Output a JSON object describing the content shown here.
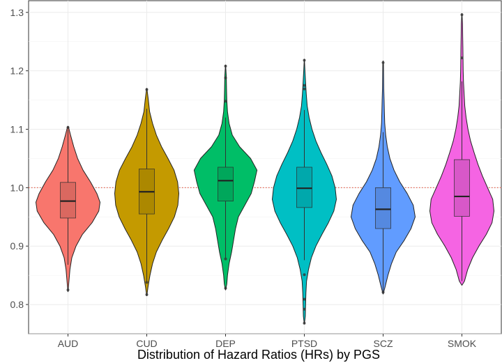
{
  "chart_data": {
    "type": "violin",
    "title": "",
    "xlabel": "Distribution of Hazard Ratios (HRs) by PGS",
    "ylabel": "",
    "ylim": [
      0.75,
      1.32
    ],
    "yticks": [
      0.8,
      0.9,
      1.0,
      1.1,
      1.2,
      1.3
    ],
    "ytick_labels": [
      "0.8",
      "0.9",
      "1.0",
      "1.1",
      "1.2",
      "1.3"
    ],
    "reference_line": {
      "y": 1.0,
      "style": "dotted",
      "color": "#e8604c"
    },
    "grid": true,
    "legend": "none",
    "categories": [
      "AUD",
      "CUD",
      "DEP",
      "PTSD",
      "SCZ",
      "SMOK"
    ],
    "series": [
      {
        "name": "AUD",
        "color": "#f8766d",
        "box": {
          "q1": 0.948,
          "median": 0.977,
          "q3": 1.009,
          "whisker_low": 0.868,
          "whisker_high": 1.1
        },
        "outliers": [
          0.825,
          1.103
        ],
        "density": [
          [
            0.822,
            0.003
          ],
          [
            0.84,
            0.03
          ],
          [
            0.86,
            0.06
          ],
          [
            0.88,
            0.12
          ],
          [
            0.9,
            0.25
          ],
          [
            0.92,
            0.45
          ],
          [
            0.94,
            0.75
          ],
          [
            0.96,
            0.96
          ],
          [
            0.975,
            1.0
          ],
          [
            0.99,
            0.9
          ],
          [
            1.01,
            0.7
          ],
          [
            1.03,
            0.47
          ],
          [
            1.05,
            0.3
          ],
          [
            1.07,
            0.18
          ],
          [
            1.09,
            0.08
          ],
          [
            1.105,
            0.01
          ]
        ]
      },
      {
        "name": "CUD",
        "color": "#c49a00",
        "box": {
          "q1": 0.955,
          "median": 0.993,
          "q3": 1.032,
          "whisker_low": 0.84,
          "whisker_high": 1.135
        },
        "outliers": [
          0.817,
          0.838,
          1.168
        ],
        "density": [
          [
            0.815,
            0.003
          ],
          [
            0.83,
            0.04
          ],
          [
            0.85,
            0.1
          ],
          [
            0.87,
            0.18
          ],
          [
            0.89,
            0.3
          ],
          [
            0.91,
            0.48
          ],
          [
            0.93,
            0.68
          ],
          [
            0.95,
            0.86
          ],
          [
            0.97,
            0.97
          ],
          [
            0.99,
            1.0
          ],
          [
            1.01,
            0.96
          ],
          [
            1.03,
            0.85
          ],
          [
            1.05,
            0.66
          ],
          [
            1.07,
            0.46
          ],
          [
            1.09,
            0.3
          ],
          [
            1.11,
            0.18
          ],
          [
            1.13,
            0.09
          ],
          [
            1.15,
            0.05
          ],
          [
            1.17,
            0.005
          ]
        ]
      },
      {
        "name": "DEP",
        "color": "#00be67",
        "box": {
          "q1": 0.977,
          "median": 1.012,
          "q3": 1.035,
          "whisker_low": 0.88,
          "whisker_high": 1.12
        },
        "outliers": [
          0.828,
          0.878,
          1.148,
          1.188,
          1.208
        ],
        "density": [
          [
            0.825,
            0.003
          ],
          [
            0.835,
            0.04
          ],
          [
            0.85,
            0.06
          ],
          [
            0.87,
            0.11
          ],
          [
            0.89,
            0.19
          ],
          [
            0.91,
            0.25
          ],
          [
            0.93,
            0.31
          ],
          [
            0.95,
            0.4
          ],
          [
            0.97,
            0.6
          ],
          [
            0.99,
            0.8
          ],
          [
            1.01,
            0.9
          ],
          [
            1.03,
            0.98
          ],
          [
            1.05,
            0.78
          ],
          [
            1.07,
            0.44
          ],
          [
            1.09,
            0.21
          ],
          [
            1.11,
            0.11
          ],
          [
            1.13,
            0.06
          ],
          [
            1.15,
            0.04
          ],
          [
            1.17,
            0.03
          ],
          [
            1.19,
            0.025
          ],
          [
            1.21,
            0.003
          ]
        ]
      },
      {
        "name": "PTSD",
        "color": "#00bfc4",
        "box": {
          "q1": 0.966,
          "median": 0.999,
          "q3": 1.035,
          "whisker_low": 0.876,
          "whisker_high": 1.133
        },
        "outliers": [
          0.768,
          0.792,
          0.809,
          0.851,
          1.169,
          1.175,
          1.218
        ],
        "density": [
          [
            0.767,
            0.003
          ],
          [
            0.78,
            0.03
          ],
          [
            0.8,
            0.04
          ],
          [
            0.82,
            0.05
          ],
          [
            0.84,
            0.07
          ],
          [
            0.86,
            0.13
          ],
          [
            0.88,
            0.22
          ],
          [
            0.9,
            0.36
          ],
          [
            0.92,
            0.55
          ],
          [
            0.94,
            0.75
          ],
          [
            0.96,
            0.92
          ],
          [
            0.98,
            1.0
          ],
          [
            1.0,
            0.96
          ],
          [
            1.02,
            0.86
          ],
          [
            1.04,
            0.7
          ],
          [
            1.06,
            0.52
          ],
          [
            1.08,
            0.36
          ],
          [
            1.1,
            0.24
          ],
          [
            1.12,
            0.15
          ],
          [
            1.14,
            0.09
          ],
          [
            1.16,
            0.06
          ],
          [
            1.18,
            0.04
          ],
          [
            1.2,
            0.02
          ],
          [
            1.22,
            0.003
          ]
        ]
      },
      {
        "name": "SCZ",
        "color": "#619cff",
        "box": {
          "q1": 0.93,
          "median": 0.963,
          "q3": 1.0,
          "whisker_low": 0.822,
          "whisker_high": 1.095
        },
        "outliers": [
          0.821,
          1.214
        ],
        "density": [
          [
            0.818,
            0.003
          ],
          [
            0.83,
            0.06
          ],
          [
            0.85,
            0.15
          ],
          [
            0.87,
            0.26
          ],
          [
            0.89,
            0.41
          ],
          [
            0.91,
            0.66
          ],
          [
            0.93,
            0.87
          ],
          [
            0.95,
            1.0
          ],
          [
            0.97,
            0.94
          ],
          [
            0.99,
            0.75
          ],
          [
            1.01,
            0.52
          ],
          [
            1.03,
            0.34
          ],
          [
            1.05,
            0.21
          ],
          [
            1.07,
            0.13
          ],
          [
            1.09,
            0.08
          ],
          [
            1.11,
            0.05
          ],
          [
            1.13,
            0.04
          ],
          [
            1.15,
            0.03
          ],
          [
            1.17,
            0.02
          ],
          [
            1.19,
            0.015
          ],
          [
            1.21,
            0.01
          ],
          [
            1.217,
            0.002
          ]
        ]
      },
      {
        "name": "SMOK",
        "color": "#f564e3",
        "box": {
          "q1": 0.951,
          "median": 0.985,
          "q3": 1.048,
          "whisker_low": 0.84,
          "whisker_high": 1.182
        },
        "outliers": [
          1.222,
          1.296
        ],
        "density": [
          [
            0.833,
            0.003
          ],
          [
            0.84,
            0.08
          ],
          [
            0.86,
            0.18
          ],
          [
            0.88,
            0.33
          ],
          [
            0.9,
            0.53
          ],
          [
            0.92,
            0.76
          ],
          [
            0.94,
            0.94
          ],
          [
            0.96,
            1.0
          ],
          [
            0.98,
            0.96
          ],
          [
            1.0,
            0.8
          ],
          [
            1.02,
            0.64
          ],
          [
            1.04,
            0.5
          ],
          [
            1.06,
            0.38
          ],
          [
            1.08,
            0.27
          ],
          [
            1.1,
            0.19
          ],
          [
            1.12,
            0.13
          ],
          [
            1.14,
            0.09
          ],
          [
            1.16,
            0.07
          ],
          [
            1.18,
            0.05
          ],
          [
            1.2,
            0.04
          ],
          [
            1.22,
            0.035
          ],
          [
            1.24,
            0.03
          ],
          [
            1.26,
            0.025
          ],
          [
            1.28,
            0.02
          ],
          [
            1.298,
            0.003
          ]
        ]
      }
    ]
  }
}
